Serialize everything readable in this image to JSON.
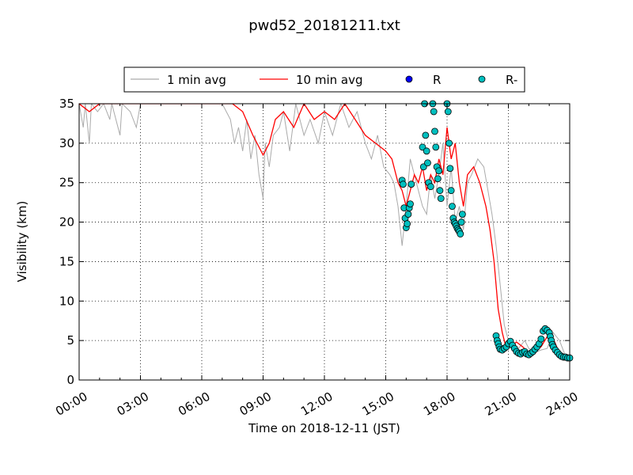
{
  "chart_data": {
    "type": "line",
    "title": "pwd52_20181211.txt",
    "xlabel": "Time on 2018-12-11 (JST)",
    "ylabel": "Visibility (km)",
    "xlim": [
      0,
      24
    ],
    "ylim": [
      0,
      35
    ],
    "x_ticks": [
      0,
      3,
      6,
      9,
      12,
      15,
      18,
      21,
      24
    ],
    "x_tick_labels": [
      "00:00",
      "03:00",
      "06:00",
      "09:00",
      "12:00",
      "15:00",
      "18:00",
      "21:00",
      "24:00"
    ],
    "y_ticks": [
      0,
      5,
      10,
      15,
      20,
      25,
      30,
      35
    ],
    "y_tick_labels": [
      "0",
      "5",
      "10",
      "15",
      "20",
      "25",
      "30",
      "35"
    ],
    "grid": true,
    "legend_position": "top-center",
    "series": [
      {
        "name": "1 min avg",
        "kind": "line",
        "color": "#aaaaaa",
        "x": [
          0,
          0.2,
          0.3,
          0.5,
          0.6,
          0.9,
          1.2,
          1.5,
          1.6,
          2.0,
          2.1,
          2.5,
          2.8,
          3.0,
          3.2,
          4.0,
          5.0,
          6.0,
          6.5,
          7.0,
          7.4,
          7.6,
          7.8,
          8.0,
          8.2,
          8.4,
          8.6,
          8.8,
          9.0,
          9.1,
          9.3,
          9.5,
          9.8,
          10.0,
          10.3,
          10.6,
          11.0,
          11.3,
          11.7,
          12.0,
          12.4,
          12.8,
          13.2,
          13.6,
          14.0,
          14.3,
          14.6,
          14.9,
          15.2,
          15.4,
          15.6,
          15.8,
          16.0,
          16.2,
          16.4,
          16.6,
          16.8,
          17.0,
          17.2,
          17.4,
          17.6,
          17.8,
          18.0,
          18.2,
          18.4,
          18.6,
          18.8,
          19.0,
          19.2,
          19.5,
          19.8,
          20.0,
          20.2,
          20.4,
          20.6,
          20.8,
          21.0,
          21.2,
          21.5,
          21.8,
          22.0,
          22.3,
          22.6,
          22.9,
          23.2,
          23.5,
          23.8,
          24.0
        ],
        "y": [
          35,
          32,
          35,
          30,
          35,
          34,
          35,
          33,
          35,
          31,
          35,
          34,
          32,
          35,
          35,
          35,
          35,
          35,
          35,
          35,
          33,
          30,
          32,
          29,
          33,
          28,
          31,
          26,
          23,
          30,
          27,
          31,
          32,
          34,
          29,
          35,
          31,
          33,
          30,
          34,
          31,
          35,
          32,
          34,
          30,
          28,
          31,
          27,
          26,
          25,
          22,
          17,
          22,
          28,
          26,
          24,
          22,
          21,
          26,
          23,
          26,
          30,
          22,
          27,
          20,
          22,
          19,
          25,
          26,
          28,
          27,
          24,
          21,
          17,
          12,
          7,
          5,
          4,
          4,
          5,
          4,
          3.5,
          3.8,
          4,
          6,
          5,
          3,
          2.8
        ]
      },
      {
        "name": "10 min avg",
        "kind": "line",
        "color": "#ff0000",
        "x": [
          0,
          0.5,
          1.0,
          1.5,
          2.0,
          2.5,
          3.0,
          4.0,
          5.0,
          6.0,
          7.0,
          7.5,
          8.0,
          8.5,
          9.0,
          9.3,
          9.6,
          10.0,
          10.5,
          11.0,
          11.5,
          12.0,
          12.5,
          13.0,
          13.5,
          14.0,
          14.5,
          15.0,
          15.3,
          15.6,
          15.8,
          16.0,
          16.2,
          16.4,
          16.6,
          16.8,
          17.0,
          17.2,
          17.4,
          17.6,
          17.8,
          18.0,
          18.2,
          18.4,
          18.6,
          18.8,
          19.0,
          19.3,
          19.6,
          19.9,
          20.1,
          20.3,
          20.5,
          20.7,
          20.9,
          21.1,
          21.4,
          21.7,
          22.0,
          22.3,
          22.6,
          22.9,
          23.2,
          23.5,
          23.8,
          24.0
        ],
        "y": [
          35,
          34,
          35,
          35,
          35,
          35,
          35,
          35,
          35,
          35,
          35,
          35,
          34,
          31,
          28.5,
          30,
          33,
          34,
          32,
          35,
          33,
          34,
          33,
          35,
          33,
          31,
          30,
          29,
          28,
          25,
          24,
          22,
          24,
          26,
          25,
          27,
          24,
          26,
          25,
          28,
          26,
          32,
          28,
          30,
          25,
          22,
          26,
          27,
          25,
          22,
          19,
          15,
          9,
          6,
          4,
          4.3,
          4.8,
          4.2,
          3.5,
          3.8,
          4.2,
          5.5,
          5.2,
          3.4,
          3.0,
          2.8
        ]
      },
      {
        "name": "R",
        "kind": "scatter",
        "color": "#0000ff",
        "x": [],
        "y": []
      },
      {
        "name": "R-",
        "kind": "scatter",
        "color": "#00bfbf",
        "x": [
          15.8,
          15.85,
          15.9,
          15.95,
          16.0,
          16.05,
          16.1,
          16.15,
          16.2,
          16.25,
          16.8,
          16.85,
          16.9,
          16.95,
          17.0,
          17.05,
          17.1,
          17.2,
          17.3,
          17.35,
          17.4,
          17.45,
          17.5,
          17.55,
          17.6,
          17.65,
          17.7,
          18.0,
          18.05,
          18.1,
          18.15,
          18.2,
          18.25,
          18.3,
          18.35,
          18.4,
          18.45,
          18.5,
          18.55,
          18.6,
          18.65,
          18.7,
          18.75,
          20.4,
          20.45,
          20.5,
          20.55,
          20.6,
          20.7,
          20.8,
          20.9,
          21.0,
          21.1,
          21.2,
          21.3,
          21.4,
          21.5,
          21.6,
          21.7,
          21.8,
          21.9,
          22.0,
          22.1,
          22.2,
          22.3,
          22.4,
          22.5,
          22.6,
          22.7,
          22.8,
          22.9,
          23.0,
          23.05,
          23.1,
          23.15,
          23.2,
          23.3,
          23.4,
          23.5,
          23.6,
          23.7,
          23.8,
          23.9,
          24.0
        ],
        "y": [
          25.3,
          24.8,
          21.8,
          20.5,
          19.3,
          19.8,
          21,
          21.8,
          22.3,
          24.8,
          29.5,
          27,
          35,
          31,
          29,
          27.5,
          25,
          24.5,
          35,
          34,
          31.5,
          29.5,
          27,
          25.5,
          26.5,
          24,
          23,
          35,
          34,
          30,
          26.8,
          24,
          22,
          20.5,
          20,
          19.8,
          19.5,
          19.2,
          19,
          18.8,
          18.5,
          20,
          21,
          5.6,
          5,
          4.6,
          4.2,
          3.9,
          3.8,
          4,
          4.2,
          4.6,
          4.9,
          4.4,
          4.0,
          3.6,
          3.4,
          3.3,
          3.5,
          3.6,
          3.3,
          3.2,
          3.4,
          3.6,
          3.9,
          4.2,
          4.6,
          5.2,
          6.2,
          6.5,
          6.3,
          6.0,
          5.5,
          5.0,
          4.5,
          4.2,
          3.8,
          3.5,
          3.2,
          3.0,
          2.9,
          2.9,
          2.8,
          2.8
        ]
      }
    ]
  }
}
